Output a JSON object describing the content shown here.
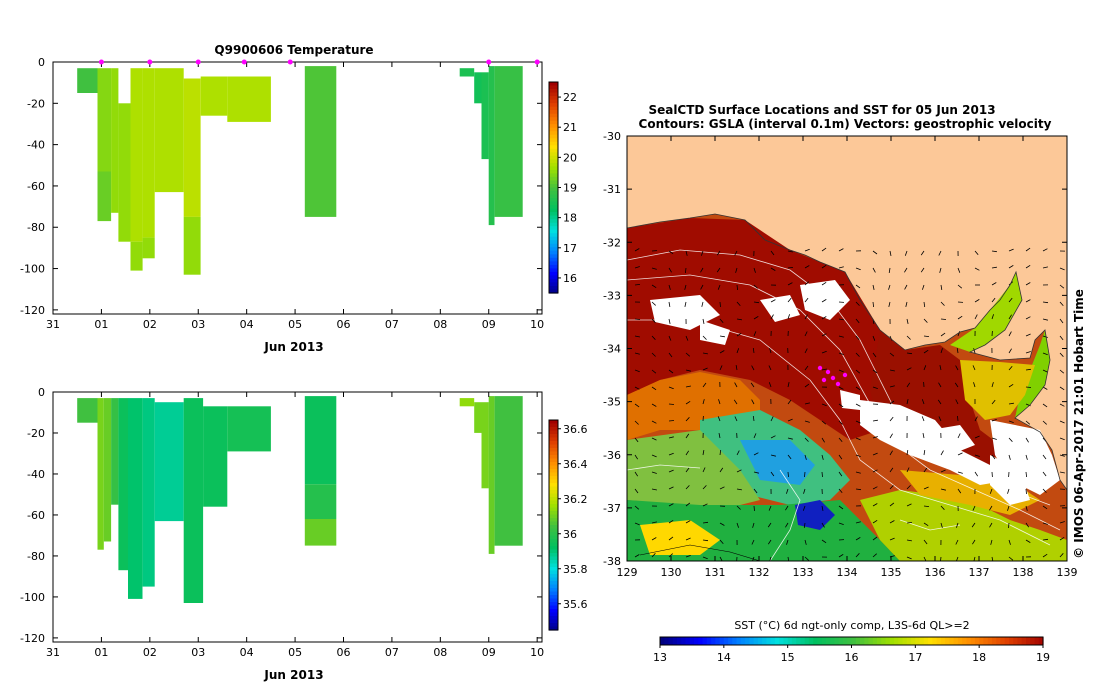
{
  "chart_data": [
    {
      "id": "temperature",
      "type": "heatmap",
      "title": "Q9900606  Temperature",
      "xlabel": "Jun 2013",
      "ylabel": "",
      "x_tick_labels": [
        "31",
        "01",
        "02",
        "03",
        "04",
        "05",
        "06",
        "07",
        "08",
        "09",
        "10"
      ],
      "x_tick_values": [
        0,
        1,
        2,
        3,
        4,
        5,
        6,
        7,
        8,
        9,
        10
      ],
      "xlim": [
        0,
        10.1
      ],
      "ylim": [
        -122,
        0
      ],
      "y_ticks": [
        0,
        -20,
        -40,
        -60,
        -80,
        -100,
        -120
      ],
      "profile_markers": [
        1.0,
        2.0,
        3.0,
        3.95,
        4.9,
        9.0,
        10.0
      ],
      "colorbar": {
        "min": 15.5,
        "max": 22.5,
        "ticks": [
          16,
          17,
          18,
          19,
          20,
          21,
          22
        ]
      },
      "profiles": [
        {
          "x0": 0.5,
          "x1": 0.92,
          "segments": [
            [
              -3,
              -15,
              19.0
            ]
          ]
        },
        {
          "x0": 0.92,
          "x1": 1.2,
          "segments": [
            [
              -3,
              -53,
              19.5
            ],
            [
              -53,
              -77,
              19.3
            ]
          ]
        },
        {
          "x0": 1.2,
          "x1": 1.35,
          "segments": [
            [
              -3,
              -73,
              19.6
            ]
          ]
        },
        {
          "x0": 1.35,
          "x1": 1.6,
          "segments": [
            [
              -20,
              -87,
              19.6
            ]
          ]
        },
        {
          "x0": 1.6,
          "x1": 1.85,
          "segments": [
            [
              -3,
              -87,
              19.8
            ],
            [
              -87,
              -101,
              19.6
            ]
          ]
        },
        {
          "x0": 1.85,
          "x1": 2.1,
          "segments": [
            [
              -3,
              -85,
              19.8
            ],
            [
              -85,
              -95,
              19.6
            ]
          ]
        },
        {
          "x0": 2.1,
          "x1": 2.7,
          "segments": [
            [
              -3,
              -63,
              19.8
            ]
          ]
        },
        {
          "x0": 2.7,
          "x1": 3.05,
          "segments": [
            [
              -8,
              -75,
              19.9
            ],
            [
              -75,
              -103,
              19.6
            ]
          ]
        },
        {
          "x0": 3.05,
          "x1": 3.6,
          "segments": [
            [
              -7,
              -26,
              19.8
            ]
          ]
        },
        {
          "x0": 3.6,
          "x1": 4.5,
          "segments": [
            [
              -7,
              -29,
              19.8
            ]
          ]
        },
        {
          "x0": 5.2,
          "x1": 5.85,
          "segments": [
            [
              -2,
              -75,
              19.1
            ]
          ]
        },
        {
          "x0": 8.4,
          "x1": 8.7,
          "segments": [
            [
              -3,
              -7,
              18.6
            ]
          ]
        },
        {
          "x0": 8.7,
          "x1": 8.85,
          "segments": [
            [
              -5,
              -20,
              18.5
            ]
          ]
        },
        {
          "x0": 8.85,
          "x1": 9.0,
          "segments": [
            [
              -5,
              -47,
              18.6
            ]
          ]
        },
        {
          "x0": 9.0,
          "x1": 9.12,
          "segments": [
            [
              -2,
              -79,
              18.7
            ]
          ]
        },
        {
          "x0": 9.12,
          "x1": 9.7,
          "segments": [
            [
              -2,
              -75,
              18.9
            ]
          ]
        }
      ]
    },
    {
      "id": "salinity",
      "type": "heatmap",
      "title": "",
      "xlabel": "Jun 2013",
      "ylabel": "",
      "x_tick_labels": [
        "31",
        "01",
        "02",
        "03",
        "04",
        "05",
        "06",
        "07",
        "08",
        "09",
        "10"
      ],
      "x_tick_values": [
        0,
        1,
        2,
        3,
        4,
        5,
        6,
        7,
        8,
        9,
        10
      ],
      "xlim": [
        0,
        10.1
      ],
      "ylim": [
        -122,
        0
      ],
      "y_ticks": [
        0,
        -20,
        -40,
        -60,
        -80,
        -100,
        -120
      ],
      "colorbar": {
        "min": 35.45,
        "max": 36.65,
        "ticks": [
          35.6,
          35.8,
          36,
          36.2,
          36.4,
          36.6
        ]
      },
      "profiles": [
        {
          "x0": 0.5,
          "x1": 0.92,
          "segments": [
            [
              -3,
              -15,
              36.05
            ]
          ]
        },
        {
          "x0": 0.92,
          "x1": 1.05,
          "segments": [
            [
              -3,
              -77,
              36.12
            ]
          ]
        },
        {
          "x0": 1.05,
          "x1": 1.2,
          "segments": [
            [
              -3,
              -73,
              36.1
            ]
          ]
        },
        {
          "x0": 1.2,
          "x1": 1.35,
          "segments": [
            [
              -3,
              -55,
              36.03
            ]
          ]
        },
        {
          "x0": 1.35,
          "x1": 1.55,
          "segments": [
            [
              -3,
              -87,
              35.95
            ]
          ]
        },
        {
          "x0": 1.55,
          "x1": 1.85,
          "segments": [
            [
              -3,
              -101,
              35.92
            ]
          ]
        },
        {
          "x0": 1.85,
          "x1": 2.1,
          "segments": [
            [
              -3,
              -95,
              35.9
            ]
          ]
        },
        {
          "x0": 2.1,
          "x1": 2.7,
          "segments": [
            [
              -5,
              -63,
              35.88
            ]
          ]
        },
        {
          "x0": 2.7,
          "x1": 3.1,
          "segments": [
            [
              -3,
              -103,
              35.95
            ]
          ]
        },
        {
          "x0": 3.1,
          "x1": 3.6,
          "segments": [
            [
              -7,
              -56,
              35.95
            ]
          ]
        },
        {
          "x0": 3.6,
          "x1": 4.5,
          "segments": [
            [
              -7,
              -29,
              35.97
            ]
          ]
        },
        {
          "x0": 5.2,
          "x1": 5.85,
          "segments": [
            [
              -2,
              -45,
              35.95
            ],
            [
              -45,
              -62,
              36.0
            ],
            [
              -62,
              -75,
              36.1
            ]
          ]
        },
        {
          "x0": 8.4,
          "x1": 8.7,
          "segments": [
            [
              -3,
              -7,
              36.15
            ]
          ]
        },
        {
          "x0": 8.7,
          "x1": 8.85,
          "segments": [
            [
              -5,
              -20,
              36.12
            ]
          ]
        },
        {
          "x0": 8.85,
          "x1": 9.0,
          "segments": [
            [
              -5,
              -47,
              36.12
            ]
          ]
        },
        {
          "x0": 9.0,
          "x1": 9.12,
          "segments": [
            [
              -2,
              -79,
              36.1
            ]
          ]
        },
        {
          "x0": 9.12,
          "x1": 9.7,
          "segments": [
            [
              -2,
              -75,
              36.05
            ]
          ]
        }
      ]
    },
    {
      "id": "sst-map",
      "type": "heatmap",
      "title": "SealCTD Surface Locations and SST for 05 Jun 2013",
      "subtitle": "Contours: GSLA (interval 0.1m) Vectors: geostrophic velocity",
      "x_ticks": [
        129,
        130,
        131,
        132,
        133,
        134,
        135,
        136,
        137,
        138,
        139
      ],
      "y_ticks": [
        -30,
        -31,
        -32,
        -33,
        -34,
        -35,
        -36,
        -37,
        -38
      ],
      "xlim": [
        129,
        139
      ],
      "ylim": [
        -38,
        -30
      ],
      "colorbar_label": "SST (°C) 6d ngt-only comp, L3S-6d QL>=2",
      "colorbar": {
        "min": 13,
        "max": 19,
        "ticks": [
          13,
          14,
          15,
          16,
          17,
          18,
          19
        ]
      },
      "credit": "© IMOS 06-Apr-2017 21:01 Hobart Time"
    }
  ],
  "colors": {
    "land": "#fcc898",
    "marker": "#ff00ff",
    "scale": [
      "#00007f",
      "#0000ff",
      "#0080ff",
      "#00e0e0",
      "#00c060",
      "#40c040",
      "#a0e000",
      "#ffe000",
      "#ff9000",
      "#e04000",
      "#a00000"
    ]
  }
}
